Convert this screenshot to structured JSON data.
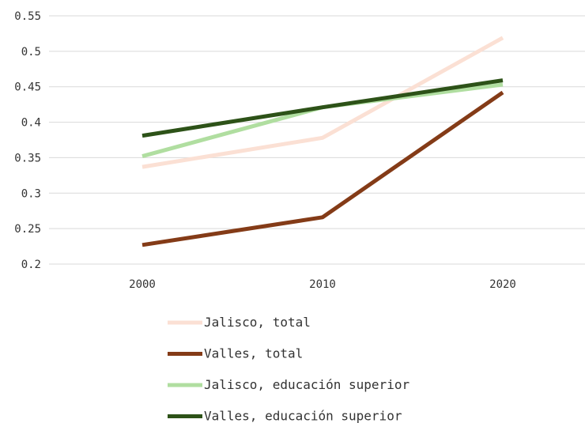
{
  "chart_data": {
    "type": "line",
    "title": "",
    "xlabel": "",
    "ylabel": "",
    "categories": [
      "2000",
      "2010",
      "2020"
    ],
    "ylim": [
      0.2,
      0.55
    ],
    "yticks": [
      "0.2",
      "0.25",
      "0.3",
      "0.35",
      "0.4",
      "0.45",
      "0.5",
      "0.55"
    ],
    "grid": "horizontal",
    "legend_position": "bottom",
    "series": [
      {
        "name": "Jalisco, total",
        "color": "#fbe0d4",
        "values": [
          0.337,
          0.378,
          0.519
        ]
      },
      {
        "name": "Valles, total",
        "color": "#843b17",
        "values": [
          0.227,
          0.266,
          0.442
        ]
      },
      {
        "name": "Jalisco, educación superior",
        "color": "#b0dea0",
        "values": [
          0.352,
          0.421,
          0.453
        ]
      },
      {
        "name": "Valles, educación superior",
        "color": "#2d5218",
        "values": [
          0.381,
          0.421,
          0.459
        ]
      }
    ]
  }
}
